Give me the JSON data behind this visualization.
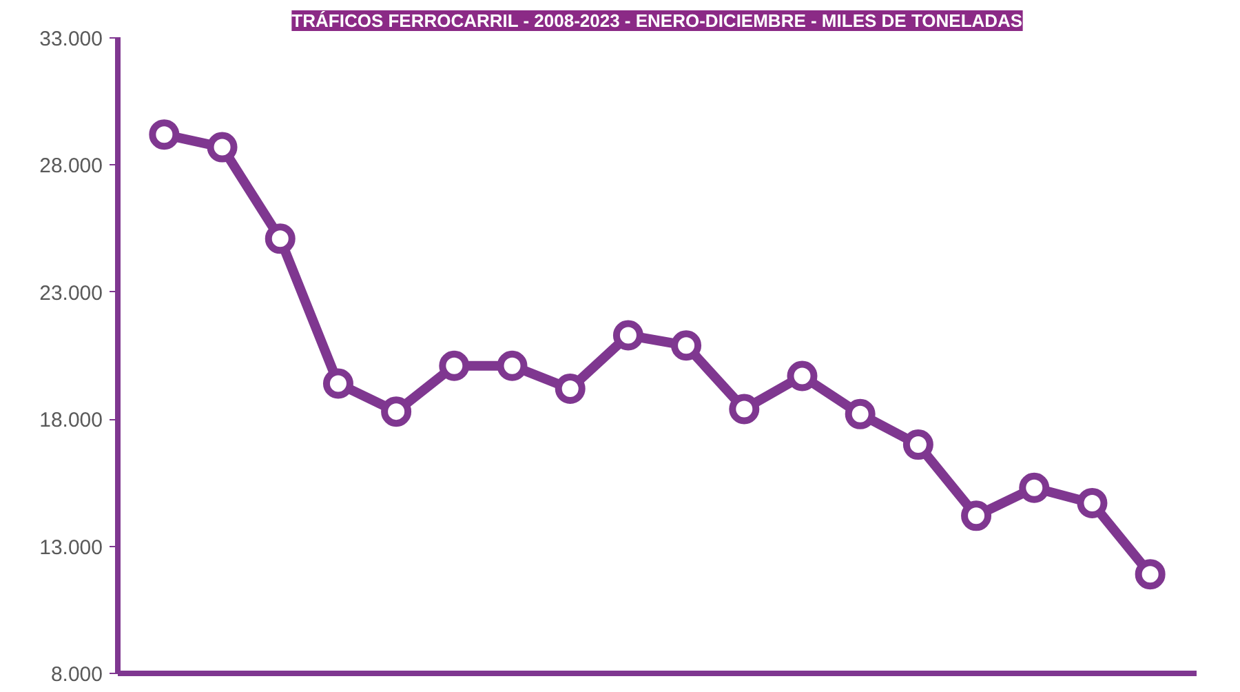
{
  "chart_data": {
    "type": "line",
    "title": "TRÁFICOS FERROCARRIL - 2008-2023 - ENERO-DICIEMBRE - MILES DE TONELADAS",
    "categories": [
      null,
      null,
      null,
      null,
      null,
      null,
      null,
      null,
      null,
      null,
      null,
      null,
      null,
      null,
      null,
      null,
      null,
      null
    ],
    "series": [
      {
        "color": "#7f3790",
        "values": [
          29200,
          28700,
          25100,
          19400,
          18300,
          20100,
          20100,
          19200,
          21300,
          20900,
          18400,
          19700,
          18200,
          17000,
          14200,
          15300,
          14700,
          11900
        ]
      }
    ],
    "ylim": [
      8000,
      33000
    ],
    "yticks": [
      {
        "value": 8000,
        "label": "8.000"
      },
      {
        "value": 13000,
        "label": "13.000"
      },
      {
        "value": 18000,
        "label": "18.000"
      },
      {
        "value": 23000,
        "label": "23.000"
      },
      {
        "value": 28000,
        "label": "28.000"
      },
      {
        "value": 33000,
        "label": "33.000"
      }
    ],
    "tick_labels": "y",
    "grid": false,
    "marker": "circle",
    "line_style": "solid"
  }
}
